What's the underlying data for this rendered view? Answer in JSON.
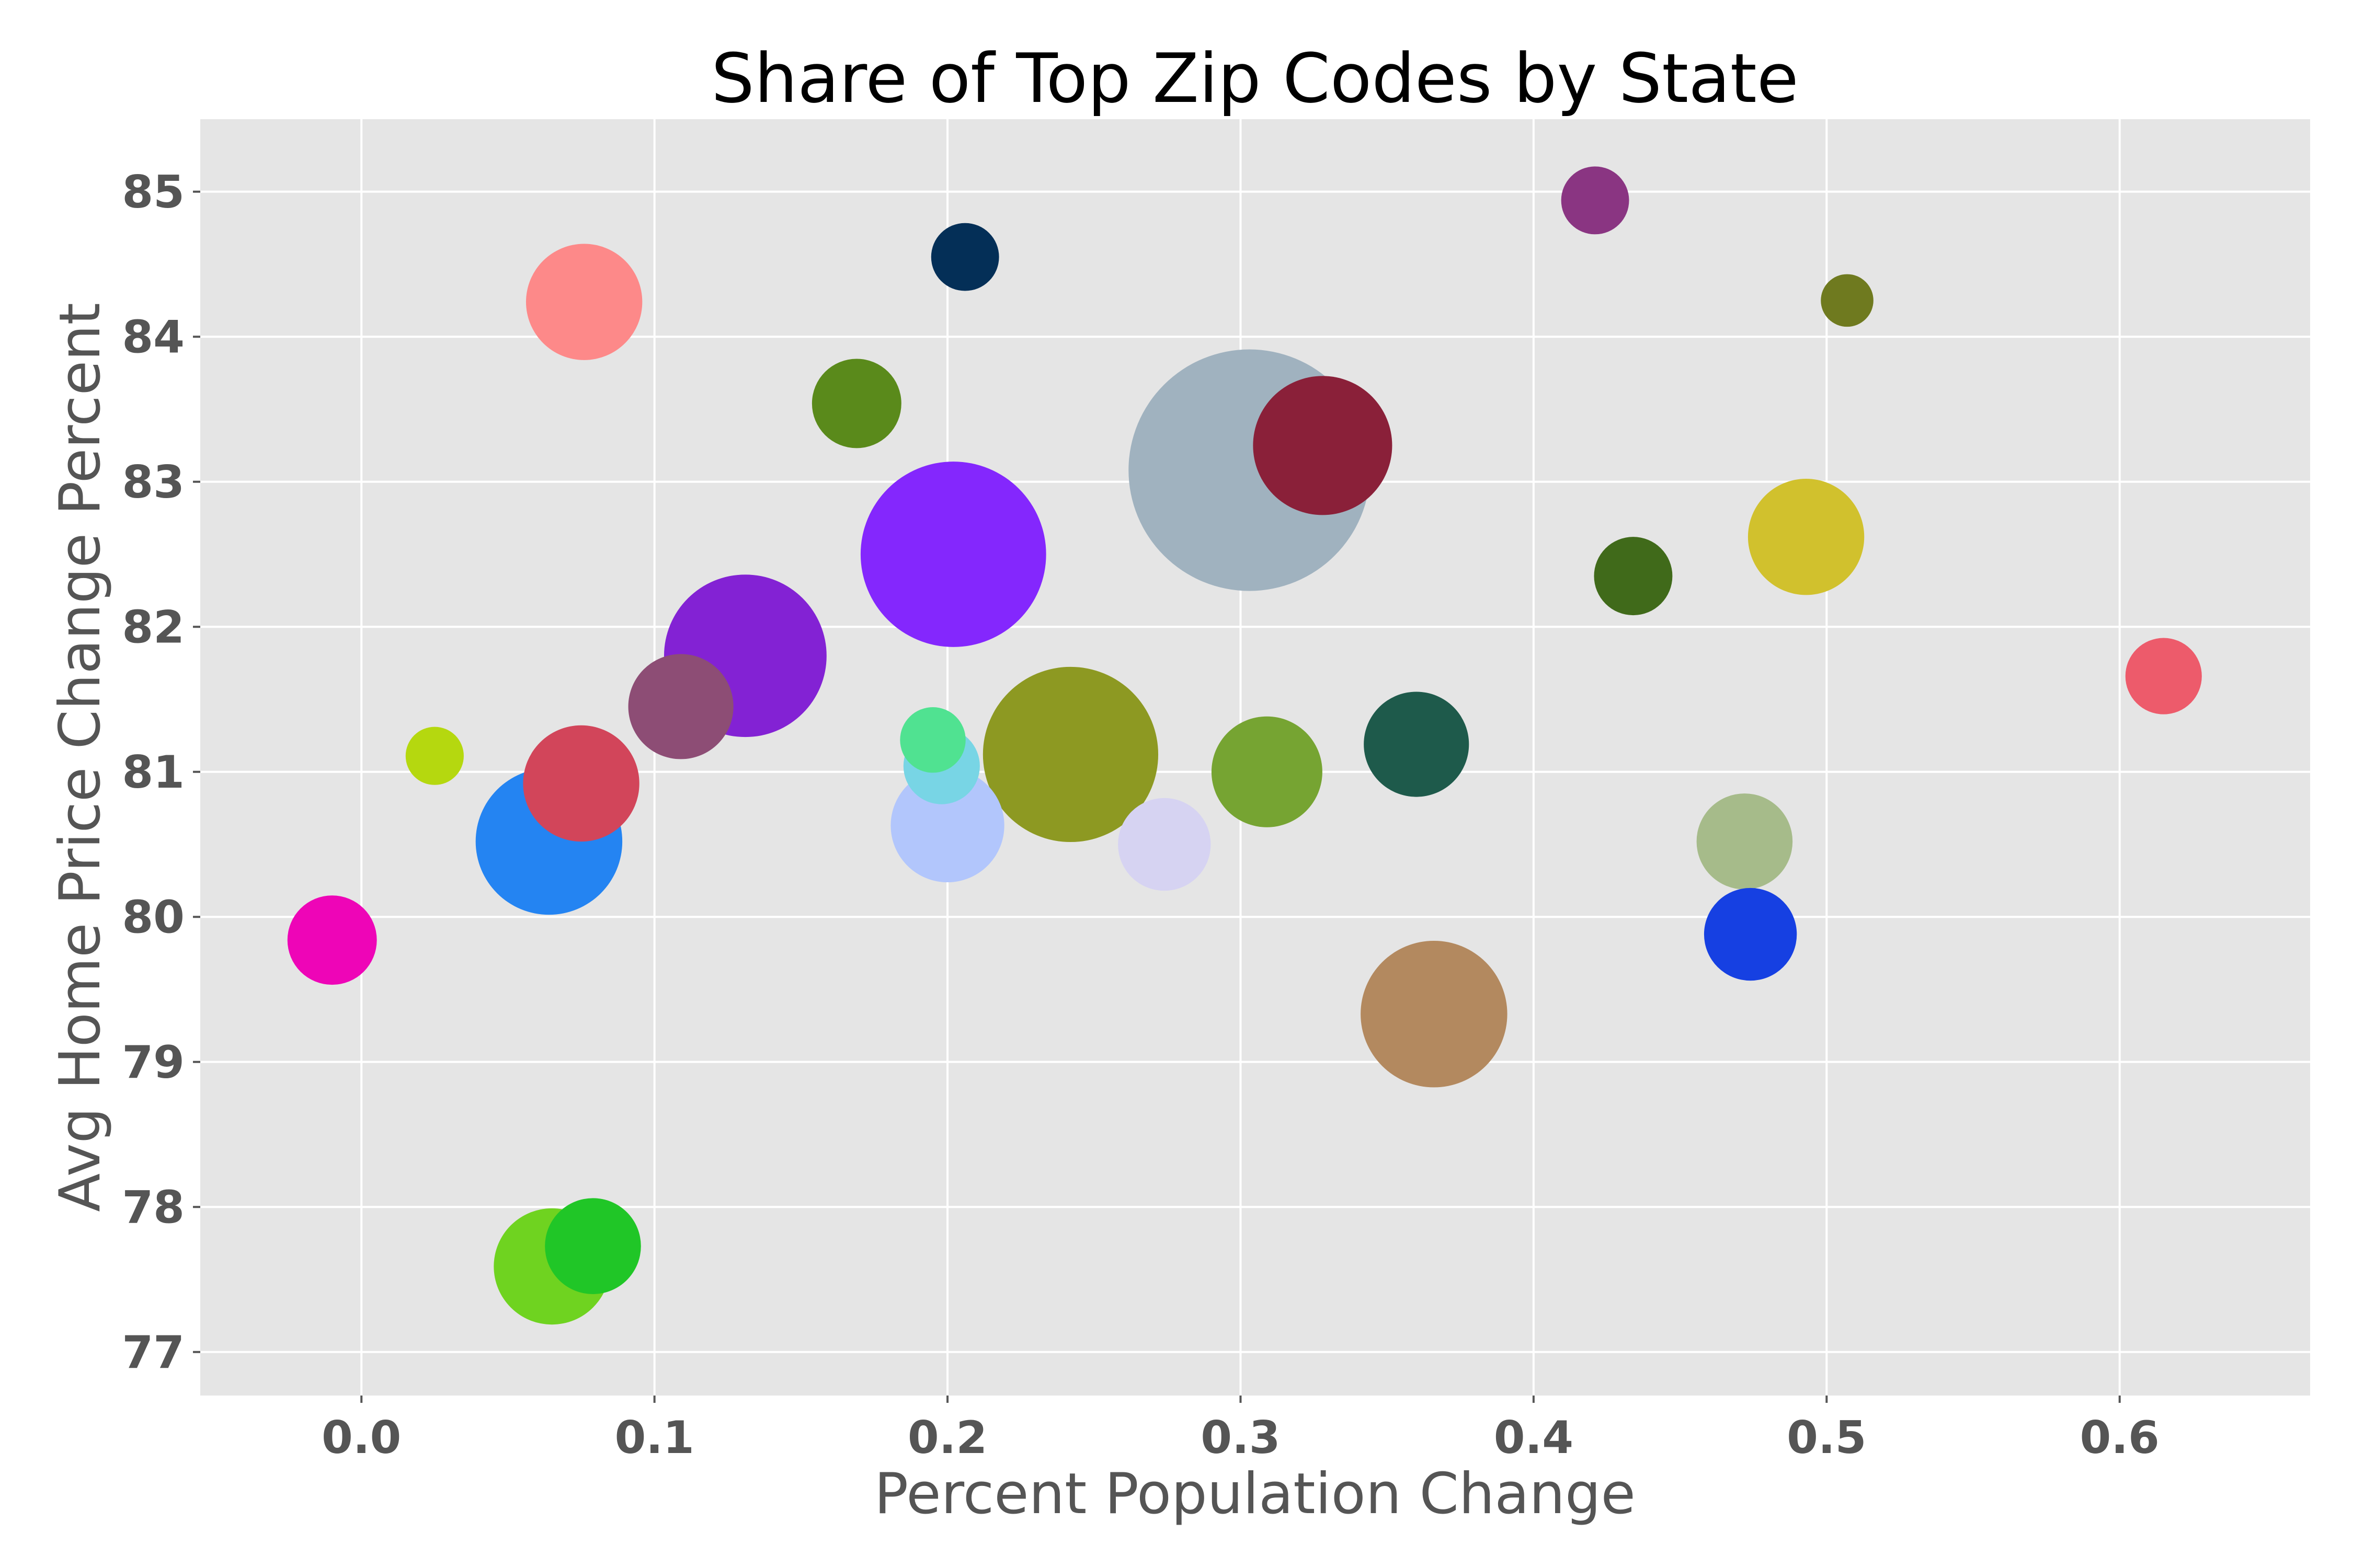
{
  "chart_data": {
    "type": "scatter",
    "title": "Share of Top Zip Codes by State",
    "xlabel": "Percent Population Change",
    "ylabel": "Avg Home Price Change Percent",
    "xlim": [
      -0.055,
      0.665
    ],
    "ylim": [
      76.7,
      85.5
    ],
    "x_ticks": [
      "0.0",
      "0.1",
      "0.2",
      "0.3",
      "0.4",
      "0.5",
      "0.6"
    ],
    "x_tick_values": [
      0.0,
      0.1,
      0.2,
      0.3,
      0.4,
      0.5,
      0.6
    ],
    "y_ticks": [
      "77",
      "78",
      "79",
      "80",
      "81",
      "82",
      "83",
      "84",
      "85"
    ],
    "y_tick_values": [
      77,
      78,
      79,
      80,
      81,
      82,
      83,
      84,
      85
    ],
    "grid": true,
    "background_color": "#e5e5e5",
    "grid_color": "#ffffff",
    "points": [
      {
        "x": 0.303,
        "y": 83.08,
        "size": 19.0,
        "color": "#a0b2bf"
      },
      {
        "x": 0.202,
        "y": 82.5,
        "size": 11.2,
        "color": "#8427fd"
      },
      {
        "x": 0.242,
        "y": 81.12,
        "size": 10.0,
        "color": "#8d9922"
      },
      {
        "x": 0.131,
        "y": 81.8,
        "size": 8.6,
        "color": "#8322d4"
      },
      {
        "x": 0.328,
        "y": 83.25,
        "size": 6.3,
        "color": "#8a2039"
      },
      {
        "x": 0.366,
        "y": 79.33,
        "size": 7.0,
        "color": "#b3895f"
      },
      {
        "x": 0.064,
        "y": 80.52,
        "size": 7.0,
        "color": "#2484f2"
      },
      {
        "x": 0.075,
        "y": 80.92,
        "size": 4.4,
        "color": "#d2455a"
      },
      {
        "x": 0.076,
        "y": 84.24,
        "size": 4.4,
        "color": "#fd8989"
      },
      {
        "x": 0.065,
        "y": 77.59,
        "size": 4.4,
        "color": "#6fd320"
      },
      {
        "x": 0.079,
        "y": 77.73,
        "size": 3.0,
        "color": "#20c627"
      },
      {
        "x": 0.493,
        "y": 82.62,
        "size": 4.4,
        "color": "#d1c12d"
      },
      {
        "x": 0.2,
        "y": 80.63,
        "size": 4.2,
        "color": "#b2c6fc"
      },
      {
        "x": 0.309,
        "y": 81.0,
        "size": 4.0,
        "color": "#76a432"
      },
      {
        "x": 0.36,
        "y": 81.19,
        "size": 3.6,
        "color": "#1e5a4b"
      },
      {
        "x": 0.109,
        "y": 81.45,
        "size": 3.6,
        "color": "#8d4d75"
      },
      {
        "x": 0.472,
        "y": 80.52,
        "size": 3.0,
        "color": "#a6bb8a"
      },
      {
        "x": 0.274,
        "y": 80.5,
        "size": 2.8,
        "color": "#d6d3f2"
      },
      {
        "x": 0.169,
        "y": 83.54,
        "size": 2.6,
        "color": "#5a8a1b"
      },
      {
        "x": 0.474,
        "y": 79.88,
        "size": 2.8,
        "color": "#1640e2"
      },
      {
        "x": -0.01,
        "y": 79.84,
        "size": 2.6,
        "color": "#ee05b7"
      },
      {
        "x": 0.434,
        "y": 82.35,
        "size": 2.0,
        "color": "#406a1a"
      },
      {
        "x": 0.615,
        "y": 81.66,
        "size": 1.9,
        "color": "#ed5b6b"
      },
      {
        "x": 0.198,
        "y": 81.04,
        "size": 1.9,
        "color": "#78d5e5"
      },
      {
        "x": 0.206,
        "y": 84.55,
        "size": 1.5,
        "color": "#042f57"
      },
      {
        "x": 0.421,
        "y": 84.94,
        "size": 1.5,
        "color": "#8a3582"
      },
      {
        "x": 0.195,
        "y": 81.22,
        "size": 1.4,
        "color": "#50e291"
      },
      {
        "x": 0.025,
        "y": 81.11,
        "size": 1.1,
        "color": "#b5d80f"
      },
      {
        "x": 0.507,
        "y": 84.25,
        "size": 0.9,
        "color": "#6f7a1f"
      }
    ]
  }
}
